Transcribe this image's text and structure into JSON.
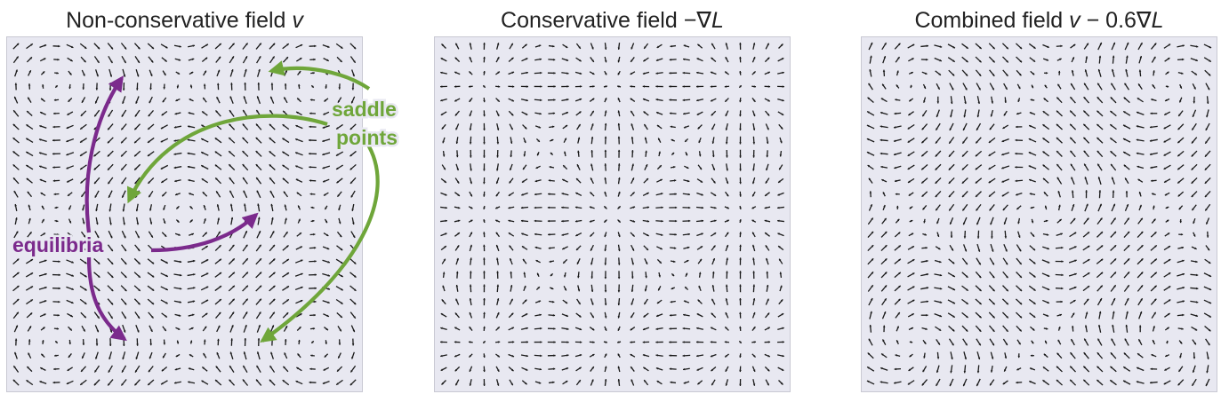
{
  "panels": [
    {
      "id": "nonconservative",
      "title_text": "Non-conservative field ",
      "title_math": "v",
      "field": "rotational"
    },
    {
      "id": "conservative",
      "title_text": "Conservative field ",
      "title_math_prefix": "−∇",
      "title_math": "L",
      "field": "gradient"
    },
    {
      "id": "combined",
      "title_text": "Combined field ",
      "title_math": "v",
      "title_math_mid": " − 0.6∇",
      "title_math_tail": "L",
      "field": "combined",
      "gradient_weight": 0.6
    }
  ],
  "annotations": {
    "equilibria_label": "equilibria",
    "saddle_label_line1": "saddle",
    "saddle_label_line2": "points",
    "equilibria_color": "#7b2a8c",
    "saddle_color": "#6fa63a"
  },
  "colors": {
    "panel_background": "#e8e8f1",
    "arrow": "#1a1a1a"
  }
}
